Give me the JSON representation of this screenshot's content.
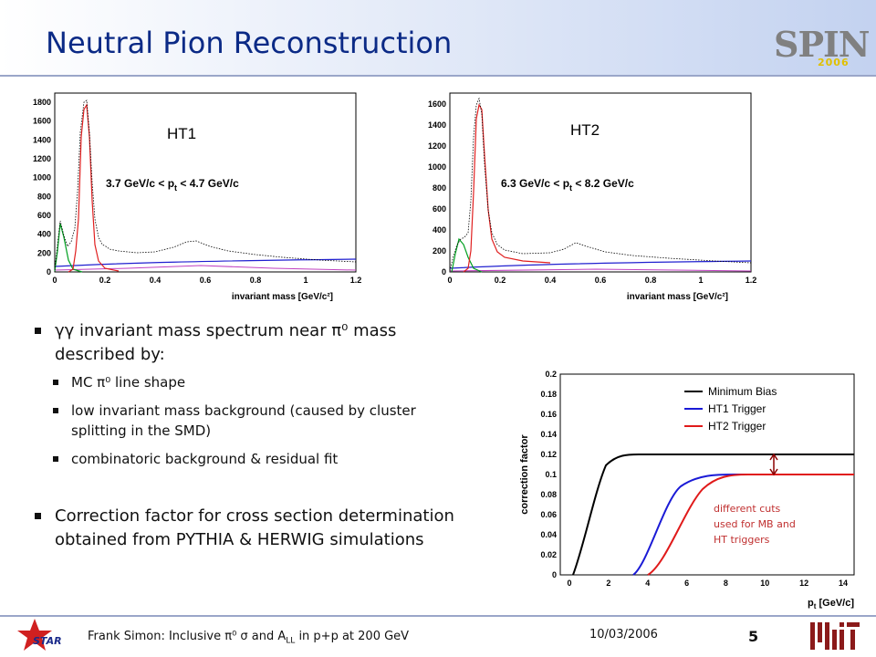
{
  "header": {
    "title": "Neutral Pion Reconstruction",
    "logo_text": "SPIN",
    "logo_year": "2006"
  },
  "plots": [
    {
      "label": "HT1",
      "range_text": "3.7 GeV/c < p",
      "range_sub": "t",
      "range_tail": " < 4.7 GeV/c",
      "yticks": [
        "0",
        "200",
        "400",
        "600",
        "800",
        "1000",
        "1200",
        "1400",
        "1600",
        "1800"
      ],
      "xticks": [
        "0",
        "0.2",
        "0.4",
        "0.6",
        "0.8",
        "1",
        "1.2"
      ],
      "xlabel": "invariant mass [GeV/c²]"
    },
    {
      "label": "HT2",
      "range_text": "6.3 GeV/c < p",
      "range_sub": "t",
      "range_tail": " < 8.2 GeV/c",
      "yticks": [
        "0",
        "200",
        "400",
        "600",
        "800",
        "1000",
        "1200",
        "1400",
        "1600"
      ],
      "xticks": [
        "0",
        "0.2",
        "0.4",
        "0.6",
        "0.8",
        "1",
        "1.2"
      ],
      "xlabel": "invariant mass [GeV/c²]"
    }
  ],
  "bullets": {
    "b1": "γγ invariant mass spectrum near π⁰ mass described by:",
    "sub1": "MC π⁰ line shape",
    "sub2": "low invariant mass background (caused by cluster splitting in the SMD)",
    "sub3": "combinatoric background & residual fit",
    "b2": "Correction factor for cross section determination obtained from PYTHIA & HERWIG simulations"
  },
  "correction_plot": {
    "ylabel": "correction factor",
    "xlabel": "p",
    "xlabel_sub": "t",
    "xlabel_tail": " [GeV/c]",
    "yticks": [
      "0",
      "0.02",
      "0.04",
      "0.06",
      "0.08",
      "0.1",
      "0.12",
      "0.14",
      "0.16",
      "0.18",
      "0.2"
    ],
    "xticks": [
      "0",
      "2",
      "4",
      "6",
      "8",
      "10",
      "12",
      "14"
    ],
    "legend": [
      "Minimum Bias",
      "HT1 Trigger",
      "HT2 Trigger"
    ],
    "legend_colors": [
      "#000000",
      "#1a1ad6",
      "#e01a1a"
    ],
    "note": [
      "different cuts",
      "used for MB and",
      "HT triggers"
    ],
    "note_color": "#c03030"
  },
  "footer": {
    "author": "Frank Simon: Inclusive π⁰ σ and A",
    "sub": "LL",
    "tail": " in p+p at 200 GeV",
    "date": "10/03/2006",
    "page": "5"
  }
}
